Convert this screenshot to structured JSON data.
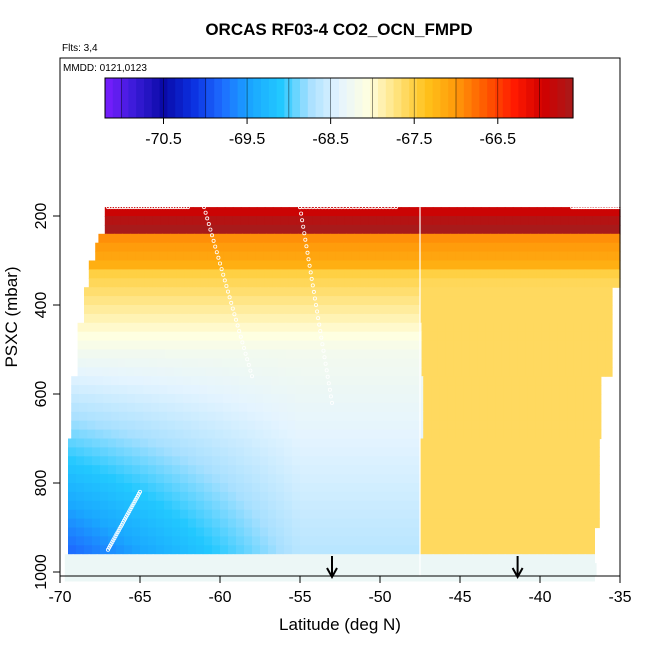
{
  "chart_data": {
    "type": "heatmap",
    "title": "ORCAS RF03-4 CO2_OCN_FMPD",
    "notes": [
      "Flts: 3,4",
      "MMDD: 0121,0123"
    ],
    "xlabel": "Latitude (deg N)",
    "ylabel": "PSXC (mbar)",
    "xlim": [
      -70,
      -35
    ],
    "ylim": [
      1010,
      100
    ],
    "xticks": [
      -70,
      -65,
      -60,
      -55,
      -50,
      -45,
      -40,
      -35
    ],
    "yticks": [
      200,
      400,
      600,
      800,
      1000
    ],
    "colorbar": {
      "range": [
        -71.2,
        -65.6
      ],
      "ticks": [
        -70.5,
        -69.5,
        -68.5,
        -67.5,
        -66.5
      ],
      "colors": [
        "#7a1dff",
        "#3a1cd8",
        "#0a0aa8",
        "#0b2fe0",
        "#1e6cff",
        "#1aa8ff",
        "#22c8ff",
        "#a8e0ff",
        "#e4f4ff",
        "#ffffe0",
        "#ffe27a",
        "#ffc21a",
        "#ff9a0a",
        "#ff5a00",
        "#ff1a00",
        "#d10000",
        "#a81a1a"
      ]
    },
    "arrows_x": [
      -53,
      -41.4
    ],
    "gap_x": -47.5,
    "grid": false
  }
}
